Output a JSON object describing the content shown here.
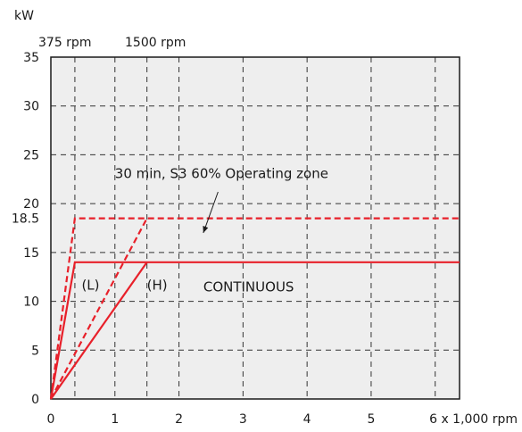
{
  "chart_data": {
    "type": "line",
    "ylabel": "kW",
    "xlabel": "6 x 1,000 rpm",
    "xlim": [
      0,
      6.38
    ],
    "ylim": [
      0,
      35
    ],
    "x_ticks": [
      0,
      1,
      2,
      3,
      4,
      5
    ],
    "x_tick_labels": [
      "0",
      "1",
      "2",
      "3",
      "4",
      "5"
    ],
    "y_ticks": [
      0,
      5,
      10,
      15,
      20,
      25,
      30,
      35
    ],
    "y_tick_labels": [
      "0",
      "5",
      "10",
      "15",
      "20",
      "25",
      "30",
      "35"
    ],
    "extra_y_tick": {
      "value": 18.5,
      "label": "18.5"
    },
    "top_labels": [
      {
        "x": 0.375,
        "text": "375 rpm"
      },
      {
        "x": 1.5,
        "text": "1500 rpm"
      }
    ],
    "grid": true,
    "colors": {
      "accent": "#e8202a",
      "grid": "#333333",
      "background": "#eeeeee"
    },
    "series": [
      {
        "style": "solid",
        "points": [
          [
            0,
            0
          ],
          [
            0.375,
            14
          ],
          [
            6.38,
            14
          ]
        ]
      },
      {
        "style": "solid",
        "points": [
          [
            0,
            0
          ],
          [
            1.5,
            14
          ]
        ]
      },
      {
        "style": "dashed",
        "points": [
          [
            0,
            0
          ],
          [
            0.375,
            18.5
          ],
          [
            6.38,
            18.5
          ]
        ]
      },
      {
        "style": "dashed",
        "points": [
          [
            0,
            0
          ],
          [
            1.5,
            18.5
          ]
        ]
      }
    ],
    "annotations": [
      {
        "text": "30 min, S3 60% Operating zone",
        "x": 1.0,
        "y": 22.6,
        "arrow_to": [
          2.38,
          17.0
        ]
      },
      {
        "text": "CONTINUOUS",
        "x": 2.38,
        "y": 11.0
      },
      {
        "text": "(L)",
        "x": 0.48,
        "y": 11.2
      },
      {
        "text": "(H)",
        "x": 1.5,
        "y": 11.2
      }
    ]
  }
}
